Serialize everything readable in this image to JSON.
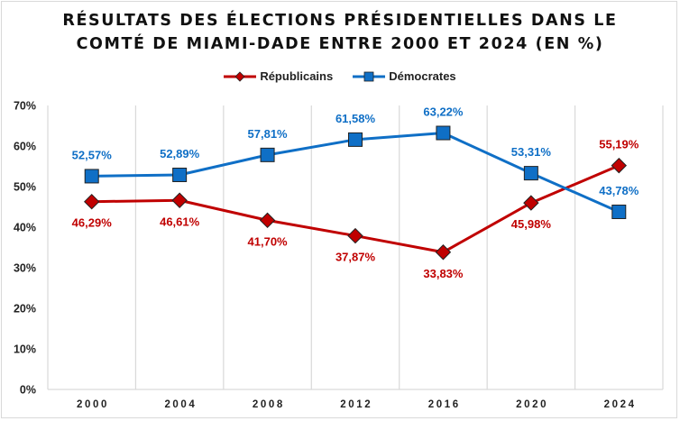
{
  "chart_data": {
    "type": "line",
    "title_lines": [
      "RÉSULTATS DES ÉLECTIONS PRÉSIDENTIELLES DANS LE",
      "COMTÉ DE MIAMI-DADE ENTRE 2000 ET 2024 (EN %)"
    ],
    "xlabel": "",
    "ylabel": "",
    "categories": [
      "2000",
      "2004",
      "2008",
      "2012",
      "2016",
      "2020",
      "2024"
    ],
    "ylim": [
      0,
      70
    ],
    "yticks": [
      0,
      10,
      20,
      30,
      40,
      50,
      60,
      70
    ],
    "ytick_labels": [
      "0%",
      "10%",
      "20%",
      "30%",
      "40%",
      "50%",
      "60%",
      "70%"
    ],
    "grid": "vertical",
    "legend_position": "top-center",
    "series": [
      {
        "name": "Républicains",
        "color": "#c00000",
        "marker": "diamond",
        "values": [
          46.29,
          46.61,
          41.7,
          37.87,
          33.83,
          45.98,
          55.19
        ],
        "labels": [
          "46,29%",
          "46,61%",
          "41,70%",
          "37,87%",
          "33,83%",
          "45,98%",
          "55,19%"
        ],
        "label_positions": [
          "below",
          "below",
          "below",
          "below",
          "below",
          "below",
          "above"
        ]
      },
      {
        "name": "Démocrates",
        "color": "#0f6fc6",
        "marker": "square",
        "values": [
          52.57,
          52.89,
          57.81,
          61.58,
          63.22,
          53.31,
          43.78
        ],
        "labels": [
          "52,57%",
          "52,89%",
          "57,81%",
          "61,58%",
          "63,22%",
          "53,31%",
          "43,78%"
        ],
        "label_positions": [
          "above",
          "above",
          "above",
          "above",
          "above",
          "above",
          "above"
        ]
      }
    ]
  }
}
